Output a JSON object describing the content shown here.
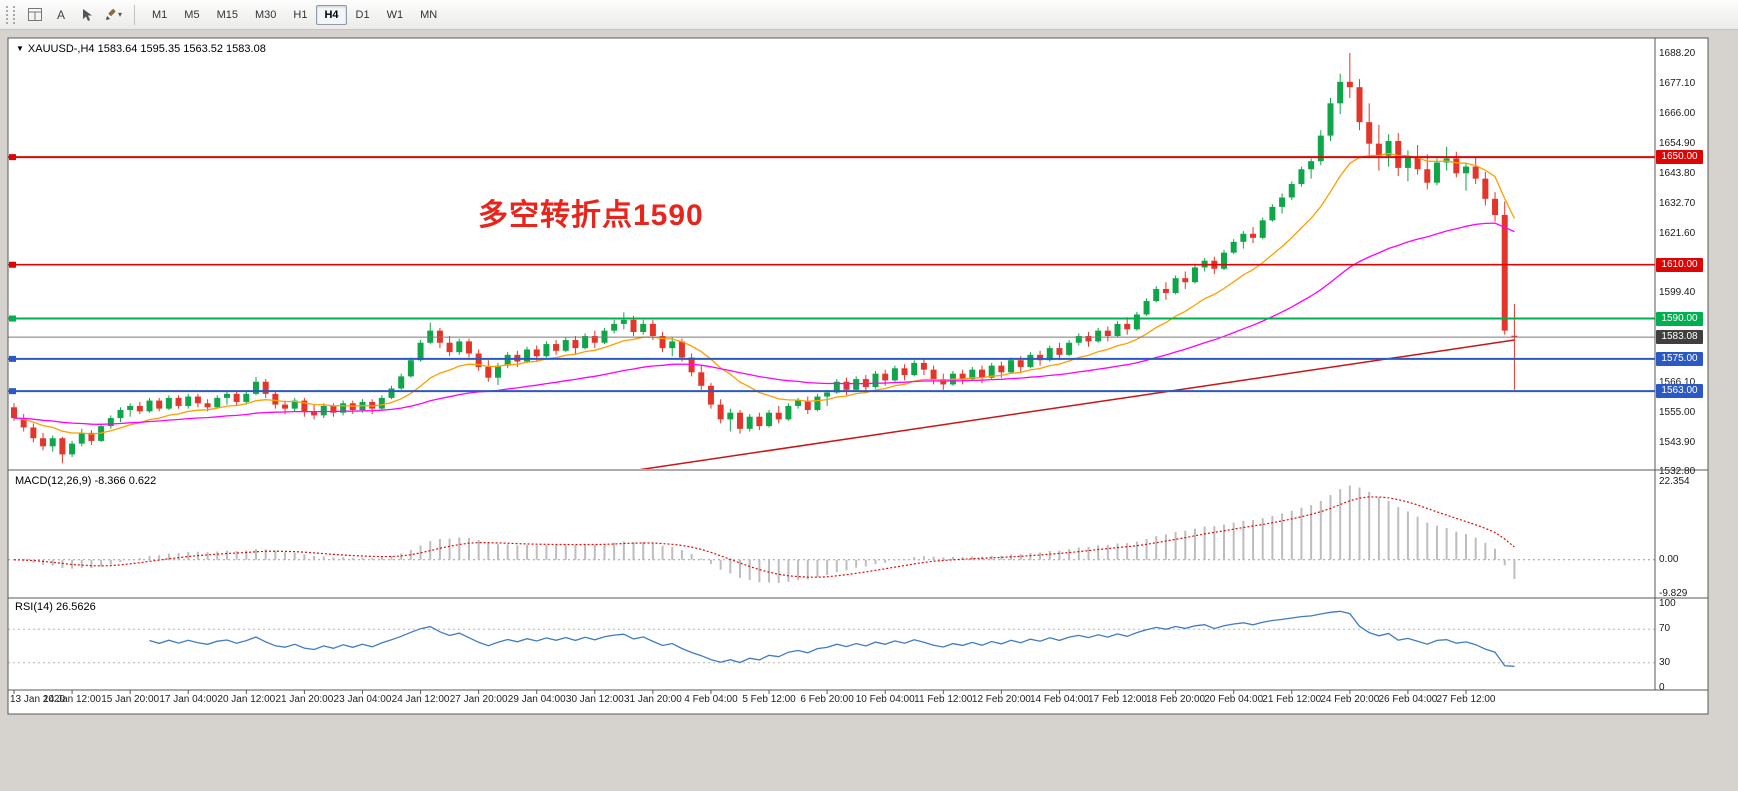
{
  "toolbar": {
    "a_button": "A",
    "icons": [
      "window-grid-icon",
      "pointer-icon",
      "brush-icon",
      "caret-down-icon"
    ],
    "timeframes": [
      "M1",
      "M5",
      "M15",
      "M30",
      "H1",
      "H4",
      "D1",
      "W1",
      "MN"
    ],
    "active_timeframe": "H4"
  },
  "window": {
    "title_line": "XAUUSD-,H4  1583.64 1595.35 1563.52 1583.08",
    "symbol": "XAUUSD-",
    "period": "H4",
    "ohlc": {
      "open": "1583.64",
      "high": "1595.35",
      "low": "1563.52",
      "close": "1583.08"
    }
  },
  "annotation": {
    "text": "多空转折点1590",
    "color": "#e8251c"
  },
  "price_axis": {
    "grid_labels": [
      1688.2,
      1677.1,
      1666.0,
      1654.9,
      1643.8,
      1632.7,
      1621.6,
      1599.4,
      1566.1,
      1555.0,
      1543.9,
      1532.8
    ]
  },
  "levels": [
    {
      "price": 1650.0,
      "label": "1650.00",
      "color": "#dd0404",
      "width": 2
    },
    {
      "price": 1610.0,
      "label": "1610.00",
      "color": "#dd0404",
      "width": 1.6
    },
    {
      "price": 1590.0,
      "label": "1590.00",
      "color": "#00b050",
      "width": 2
    },
    {
      "price": 1575.0,
      "label": "1575.00",
      "color": "#2b59c3",
      "width": 2
    },
    {
      "price": 1563.0,
      "label": "1563.00",
      "color": "#2b59c3",
      "width": 2
    }
  ],
  "current_price": {
    "value": 1583.08,
    "label": "1583.08",
    "bg": "#3f3f3f"
  },
  "time_axis": {
    "bars_per_label": 6,
    "labels": [
      "13 Jan 2020",
      "14 Jan 12:00",
      "15 Jan 20:00",
      "17 Jan 04:00",
      "20 Jan 12:00",
      "21 Jan 20:00",
      "23 Jan 04:00",
      "24 Jan 12:00",
      "27 Jan 20:00",
      "29 Jan 04:00",
      "30 Jan 12:00",
      "31 Jan 20:00",
      "4 Feb 04:00",
      "5 Feb 12:00",
      "6 Feb 20:00",
      "10 Feb 04:00",
      "11 Feb 12:00",
      "12 Feb 20:00",
      "14 Feb 04:00",
      "17 Feb 12:00",
      "18 Feb 20:00",
      "20 Feb 04:00",
      "21 Feb 12:00",
      "24 Feb 20:00",
      "26 Feb 04:00",
      "27 Feb 12:00"
    ]
  },
  "colors": {
    "bull": "#0fa649",
    "bear": "#e3352a",
    "frame": "#5a5a5a"
  },
  "chart_data": {
    "type": "candlestick",
    "symbol_timeframe": "XAUUSD H4",
    "ma_fast": {
      "period": 13,
      "color": "#ff9e00"
    },
    "ma_mid": {
      "period": 50,
      "color": "#ff00ff"
    },
    "ma_slow_line": {
      "from_bar": 50,
      "from_price": 1526,
      "to_bar": 155,
      "to_price": 1582,
      "color": "#cc1414"
    },
    "candles": [
      [
        1557,
        1558.5,
        1552,
        1553
      ],
      [
        1553,
        1554.5,
        1548,
        1549.5
      ],
      [
        1549.5,
        1551,
        1544,
        1545.5
      ],
      [
        1545.5,
        1547.5,
        1541,
        1542.5
      ],
      [
        1542.5,
        1546.5,
        1540.5,
        1545.5
      ],
      [
        1545.5,
        1546,
        1536.2,
        1539.5
      ],
      [
        1539.5,
        1544.5,
        1538.5,
        1543.5
      ],
      [
        1543.5,
        1549,
        1542.5,
        1547.5
      ],
      [
        1547.5,
        1548.5,
        1543,
        1544.5
      ],
      [
        1544.5,
        1551,
        1544,
        1550
      ],
      [
        1550,
        1554,
        1549,
        1553
      ],
      [
        1553,
        1557,
        1551.5,
        1556
      ],
      [
        1556,
        1558.5,
        1553.5,
        1557.5
      ],
      [
        1557.5,
        1559,
        1554.5,
        1555.5
      ],
      [
        1555.5,
        1560.5,
        1555,
        1559.5
      ],
      [
        1559.5,
        1560.5,
        1555.5,
        1556.5
      ],
      [
        1556.5,
        1561.5,
        1556,
        1560.5
      ],
      [
        1560.5,
        1561.5,
        1556.5,
        1557.5
      ],
      [
        1557.5,
        1562,
        1556.5,
        1561
      ],
      [
        1561,
        1562,
        1557,
        1558.5
      ],
      [
        1558.5,
        1560,
        1555.5,
        1557
      ],
      [
        1557,
        1561.5,
        1556.5,
        1560.5
      ],
      [
        1560.5,
        1563,
        1558,
        1562
      ],
      [
        1562,
        1563,
        1557.5,
        1559
      ],
      [
        1559,
        1563,
        1558,
        1562
      ],
      [
        1562,
        1568.3,
        1561.5,
        1566.5
      ],
      [
        1566.5,
        1567.5,
        1560.5,
        1562
      ],
      [
        1562,
        1563,
        1556.5,
        1558
      ],
      [
        1558,
        1559.5,
        1554.5,
        1556.5
      ],
      [
        1556.5,
        1560.5,
        1555.5,
        1559.5
      ],
      [
        1559.5,
        1560.5,
        1553.5,
        1555.5
      ],
      [
        1555.5,
        1558,
        1552.5,
        1554
      ],
      [
        1554,
        1558.5,
        1553,
        1557.5
      ],
      [
        1557.5,
        1558.5,
        1553.5,
        1555
      ],
      [
        1555,
        1559.5,
        1554,
        1558.5
      ],
      [
        1558.5,
        1559.5,
        1554.5,
        1556
      ],
      [
        1556,
        1560,
        1555,
        1559
      ],
      [
        1559,
        1560,
        1554.5,
        1556.5
      ],
      [
        1556.5,
        1561.5,
        1556,
        1560.5
      ],
      [
        1560.5,
        1565,
        1560,
        1564
      ],
      [
        1564,
        1569.5,
        1563.5,
        1568.5
      ],
      [
        1568.5,
        1575.5,
        1568,
        1574.5
      ],
      [
        1574.5,
        1582,
        1574,
        1581
      ],
      [
        1581,
        1588.5,
        1580.5,
        1585.5
      ],
      [
        1585.5,
        1586.5,
        1579,
        1581
      ],
      [
        1581,
        1583.5,
        1576,
        1577.5
      ],
      [
        1577.5,
        1582.5,
        1576.5,
        1581.5
      ],
      [
        1581.5,
        1582.5,
        1575.5,
        1577
      ],
      [
        1577,
        1578.5,
        1570.5,
        1572
      ],
      [
        1572,
        1574.5,
        1566.5,
        1568
      ],
      [
        1568,
        1573.5,
        1565.3,
        1572.5
      ],
      [
        1572.5,
        1577.5,
        1571.5,
        1576.5
      ],
      [
        1576.5,
        1578,
        1572,
        1574
      ],
      [
        1574,
        1579.5,
        1573.5,
        1578.5
      ],
      [
        1578.5,
        1580,
        1574,
        1576
      ],
      [
        1576,
        1581.5,
        1575.5,
        1580.5
      ],
      [
        1580.5,
        1582,
        1576.5,
        1578
      ],
      [
        1578,
        1583,
        1577.5,
        1582
      ],
      [
        1582,
        1583.5,
        1577,
        1579
      ],
      [
        1579,
        1584.5,
        1578.5,
        1583.5
      ],
      [
        1583.5,
        1585.5,
        1579,
        1581
      ],
      [
        1581,
        1586.5,
        1580.5,
        1585.5
      ],
      [
        1585.5,
        1589.5,
        1584.5,
        1588
      ],
      [
        1588,
        1592.3,
        1586,
        1589.5
      ],
      [
        1589.5,
        1591,
        1583.5,
        1585
      ],
      [
        1585,
        1589.5,
        1584,
        1588
      ],
      [
        1588,
        1589.5,
        1582,
        1583.5
      ],
      [
        1583.5,
        1585,
        1577.5,
        1579
      ],
      [
        1579,
        1583,
        1576,
        1581.5
      ],
      [
        1581.5,
        1582.5,
        1574,
        1575.5
      ],
      [
        1575.5,
        1577,
        1568.5,
        1570
      ],
      [
        1570,
        1572.5,
        1563.5,
        1565
      ],
      [
        1565,
        1566,
        1556.5,
        1558
      ],
      [
        1558,
        1560,
        1551,
        1552.5
      ],
      [
        1552.5,
        1556.5,
        1548,
        1555
      ],
      [
        1555,
        1556,
        1547.2,
        1549
      ],
      [
        1549,
        1554.5,
        1548,
        1553.5
      ],
      [
        1553.5,
        1555,
        1548.5,
        1550
      ],
      [
        1550,
        1556,
        1549.5,
        1555
      ],
      [
        1555,
        1557.5,
        1551,
        1552.5
      ],
      [
        1552.5,
        1558.5,
        1552,
        1557.5
      ],
      [
        1557.5,
        1560.5,
        1556.5,
        1559.5
      ],
      [
        1559.5,
        1561,
        1554.5,
        1556
      ],
      [
        1556,
        1562,
        1555.5,
        1561
      ],
      [
        1561,
        1563.5,
        1557.5,
        1562.5
      ],
      [
        1562.5,
        1567.5,
        1562,
        1566.5
      ],
      [
        1566.5,
        1568,
        1561.5,
        1563.5
      ],
      [
        1563.5,
        1568.5,
        1563,
        1567.5
      ],
      [
        1567.5,
        1569,
        1562.5,
        1564.5
      ],
      [
        1564.5,
        1570.5,
        1564,
        1569.5
      ],
      [
        1569.5,
        1571,
        1565,
        1567
      ],
      [
        1567,
        1572.5,
        1566.5,
        1571.5
      ],
      [
        1571.5,
        1573,
        1567,
        1569
      ],
      [
        1569,
        1574.5,
        1568.5,
        1573.5
      ],
      [
        1573.5,
        1575,
        1569,
        1571
      ],
      [
        1571,
        1572.5,
        1565.5,
        1567.5
      ],
      [
        1567.5,
        1569.5,
        1563.5,
        1565.5
      ],
      [
        1565.5,
        1570.5,
        1565,
        1569.5
      ],
      [
        1569.5,
        1571,
        1565.5,
        1567.5
      ],
      [
        1567.5,
        1572,
        1567,
        1571
      ],
      [
        1571,
        1572.5,
        1566,
        1568
      ],
      [
        1568,
        1573.5,
        1567.5,
        1572.5
      ],
      [
        1572.5,
        1574,
        1568,
        1570
      ],
      [
        1570,
        1575.5,
        1569.5,
        1574.5
      ],
      [
        1574.5,
        1576,
        1570,
        1572
      ],
      [
        1572,
        1577.5,
        1571.5,
        1576.5
      ],
      [
        1576.5,
        1578,
        1572.5,
        1574.5
      ],
      [
        1574.5,
        1580,
        1574,
        1579
      ],
      [
        1579,
        1581,
        1574.5,
        1576.5
      ],
      [
        1576.5,
        1582,
        1576,
        1581
      ],
      [
        1581,
        1584.5,
        1580,
        1583.5
      ],
      [
        1583.5,
        1585,
        1579.5,
        1581.5
      ],
      [
        1581.5,
        1586.5,
        1581,
        1585.5
      ],
      [
        1585.5,
        1587,
        1581.5,
        1583.5
      ],
      [
        1583.5,
        1589,
        1583,
        1588
      ],
      [
        1588,
        1590.5,
        1584,
        1586
      ],
      [
        1586,
        1592.5,
        1585.5,
        1591.5
      ],
      [
        1591.5,
        1597.5,
        1591,
        1596.5
      ],
      [
        1596.5,
        1602,
        1596,
        1601
      ],
      [
        1601,
        1603.5,
        1597,
        1599.5
      ],
      [
        1599.5,
        1606,
        1599,
        1605
      ],
      [
        1605,
        1607.5,
        1601,
        1603.5
      ],
      [
        1603.5,
        1610,
        1603,
        1609
      ],
      [
        1609,
        1612.5,
        1607.5,
        1611.5
      ],
      [
        1611.5,
        1613,
        1606.5,
        1608.5
      ],
      [
        1608.5,
        1615.5,
        1608,
        1614.5
      ],
      [
        1614.5,
        1619.5,
        1614,
        1618.5
      ],
      [
        1618.5,
        1622.5,
        1616,
        1621.5
      ],
      [
        1621.5,
        1624,
        1618,
        1620
      ],
      [
        1620,
        1627.5,
        1619.5,
        1626.5
      ],
      [
        1626.5,
        1632.5,
        1626,
        1631.5
      ],
      [
        1631.5,
        1636.5,
        1629,
        1635
      ],
      [
        1635,
        1641,
        1634,
        1640
      ],
      [
        1640,
        1646.5,
        1639,
        1645.5
      ],
      [
        1645.5,
        1649.5,
        1642,
        1648.5
      ],
      [
        1648.5,
        1660,
        1647,
        1658
      ],
      [
        1658,
        1672,
        1656,
        1670
      ],
      [
        1670,
        1681,
        1666,
        1678
      ],
      [
        1678,
        1688.7,
        1672,
        1676
      ],
      [
        1676,
        1679,
        1660,
        1663
      ],
      [
        1663,
        1670,
        1650,
        1655
      ],
      [
        1655,
        1662,
        1645,
        1650.5
      ],
      [
        1650.5,
        1658.5,
        1646.5,
        1656
      ],
      [
        1656,
        1659,
        1643,
        1646
      ],
      [
        1646,
        1652.5,
        1641,
        1650
      ],
      [
        1650,
        1654.5,
        1643.5,
        1645.5
      ],
      [
        1645.5,
        1651,
        1638,
        1640.5
      ],
      [
        1640.5,
        1649.5,
        1639.5,
        1648
      ],
      [
        1648,
        1653.8,
        1645,
        1649.5
      ],
      [
        1649.5,
        1652,
        1642.5,
        1644
      ],
      [
        1644,
        1648,
        1637.5,
        1646.5
      ],
      [
        1646.5,
        1650,
        1640,
        1642
      ],
      [
        1642,
        1644.5,
        1632,
        1634.5
      ],
      [
        1634.5,
        1637,
        1626,
        1628.5
      ],
      [
        1628.5,
        1633.5,
        1584,
        1585.5
      ],
      [
        1583.6,
        1595.4,
        1563.5,
        1583.1
      ]
    ]
  },
  "macd": {
    "label": "MACD(12,26,9) -8.366 0.622",
    "params": [
      12,
      26,
      9
    ],
    "value_main": "-8.366",
    "value_signal": "0.622",
    "axis_labels": [
      "22.354",
      "0.00",
      "-9.829"
    ],
    "axis_values": [
      22.354,
      0,
      -9.829
    ],
    "hist_color": "#bdbdbd",
    "signal_color": "#dd0d0d"
  },
  "rsi": {
    "label": "RSI(14) 26.5626",
    "period": 14,
    "value": "26.5626",
    "axis_labels": [
      "100",
      "70",
      "30",
      "0"
    ],
    "axis_values": [
      100,
      70,
      30,
      0
    ],
    "level_lines": [
      70,
      30
    ],
    "color": "#3f7cc4"
  }
}
